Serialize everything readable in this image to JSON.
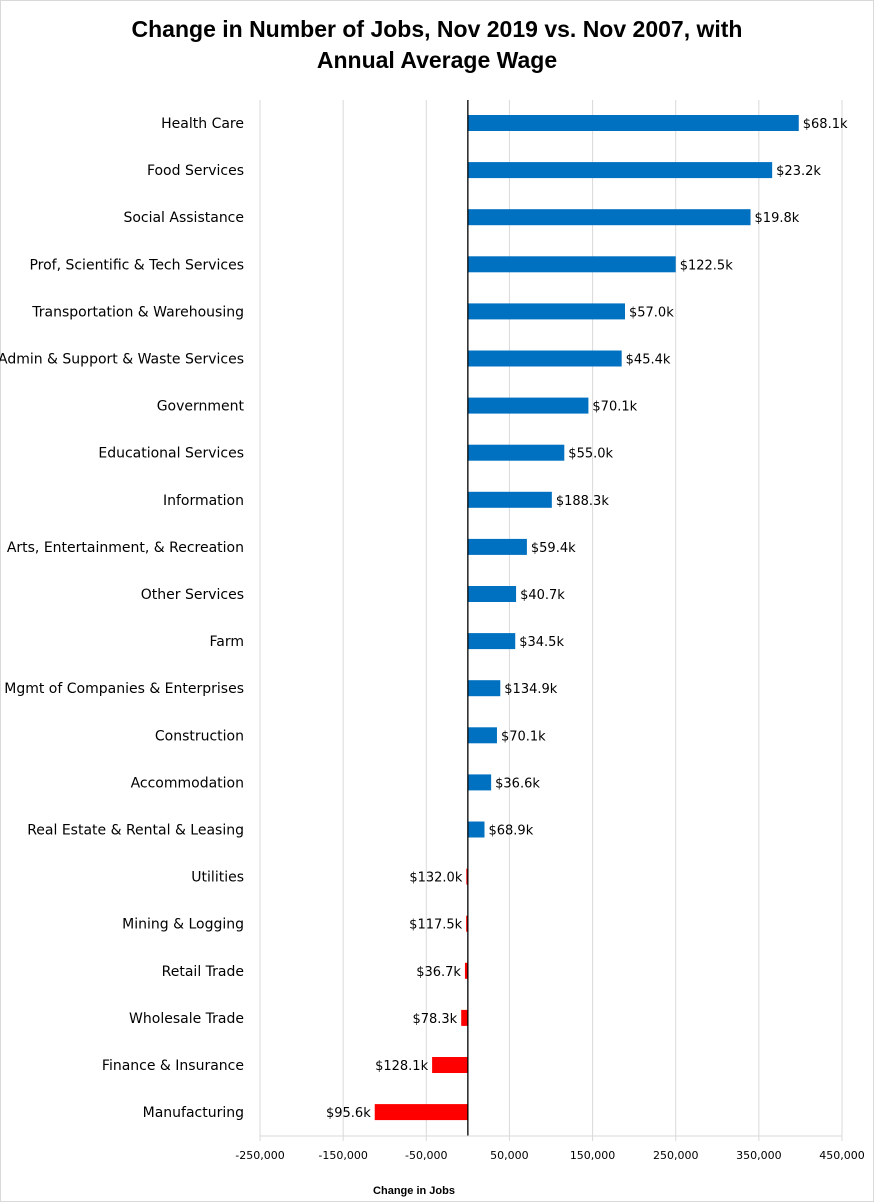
{
  "chart_data": {
    "type": "bar",
    "orientation": "horizontal",
    "title_line1": "Change in Number of Jobs, Nov 2019 vs. Nov 2007, with",
    "title_line2": "Annual Average Wage",
    "xlabel": "Change in Jobs",
    "ylabel": "",
    "xlim": [
      -250000,
      450000
    ],
    "x_ticks": [
      -250000,
      -150000,
      -50000,
      50000,
      150000,
      250000,
      350000,
      450000
    ],
    "x_tick_labels": [
      "-250,000",
      "-150,000",
      "-50,000",
      "50,000",
      "150,000",
      "250,000",
      "350,000",
      "450,000"
    ],
    "grid": "vertical",
    "legend": "none",
    "colors": {
      "positive": "#0070c0",
      "negative": "#ff0000",
      "grid": "#d9d9d9",
      "axis": "#000000"
    },
    "categories": [
      "Health Care",
      "Food Services",
      "Social Assistance",
      "Prof, Scientific & Tech Services",
      "Transportation & Warehousing",
      "Admin & Support & Waste Services",
      "Government",
      "Educational Services",
      "Information",
      "Arts, Entertainment, & Recreation",
      "Other Services",
      "Farm",
      "Mgmt of Companies & Enterprises",
      "Construction",
      "Accommodation",
      "Real Estate & Rental & Leasing",
      "Utilities",
      "Mining & Logging",
      "Retail Trade",
      "Wholesale Trade",
      "Finance & Insurance",
      "Manufacturing"
    ],
    "values": [
      398000,
      366000,
      340000,
      250000,
      189000,
      185000,
      145000,
      116000,
      101000,
      71000,
      58000,
      57000,
      39000,
      35000,
      28000,
      20000,
      -1000,
      -2000,
      -3500,
      -8000,
      -43000,
      -112000
    ],
    "data_labels": [
      "$68.1k",
      "$23.2k",
      "$19.8k",
      "$122.5k",
      "$57.0k",
      "$45.4k",
      "$70.1k",
      "$55.0k",
      "$188.3k",
      "$59.4k",
      "$40.7k",
      "$34.5k",
      "$134.9k",
      "$70.1k",
      "$36.6k",
      "$68.9k",
      "$132.0k",
      "$117.5k",
      "$36.7k",
      "$78.3k",
      "$128.1k",
      "$95.6k"
    ]
  }
}
